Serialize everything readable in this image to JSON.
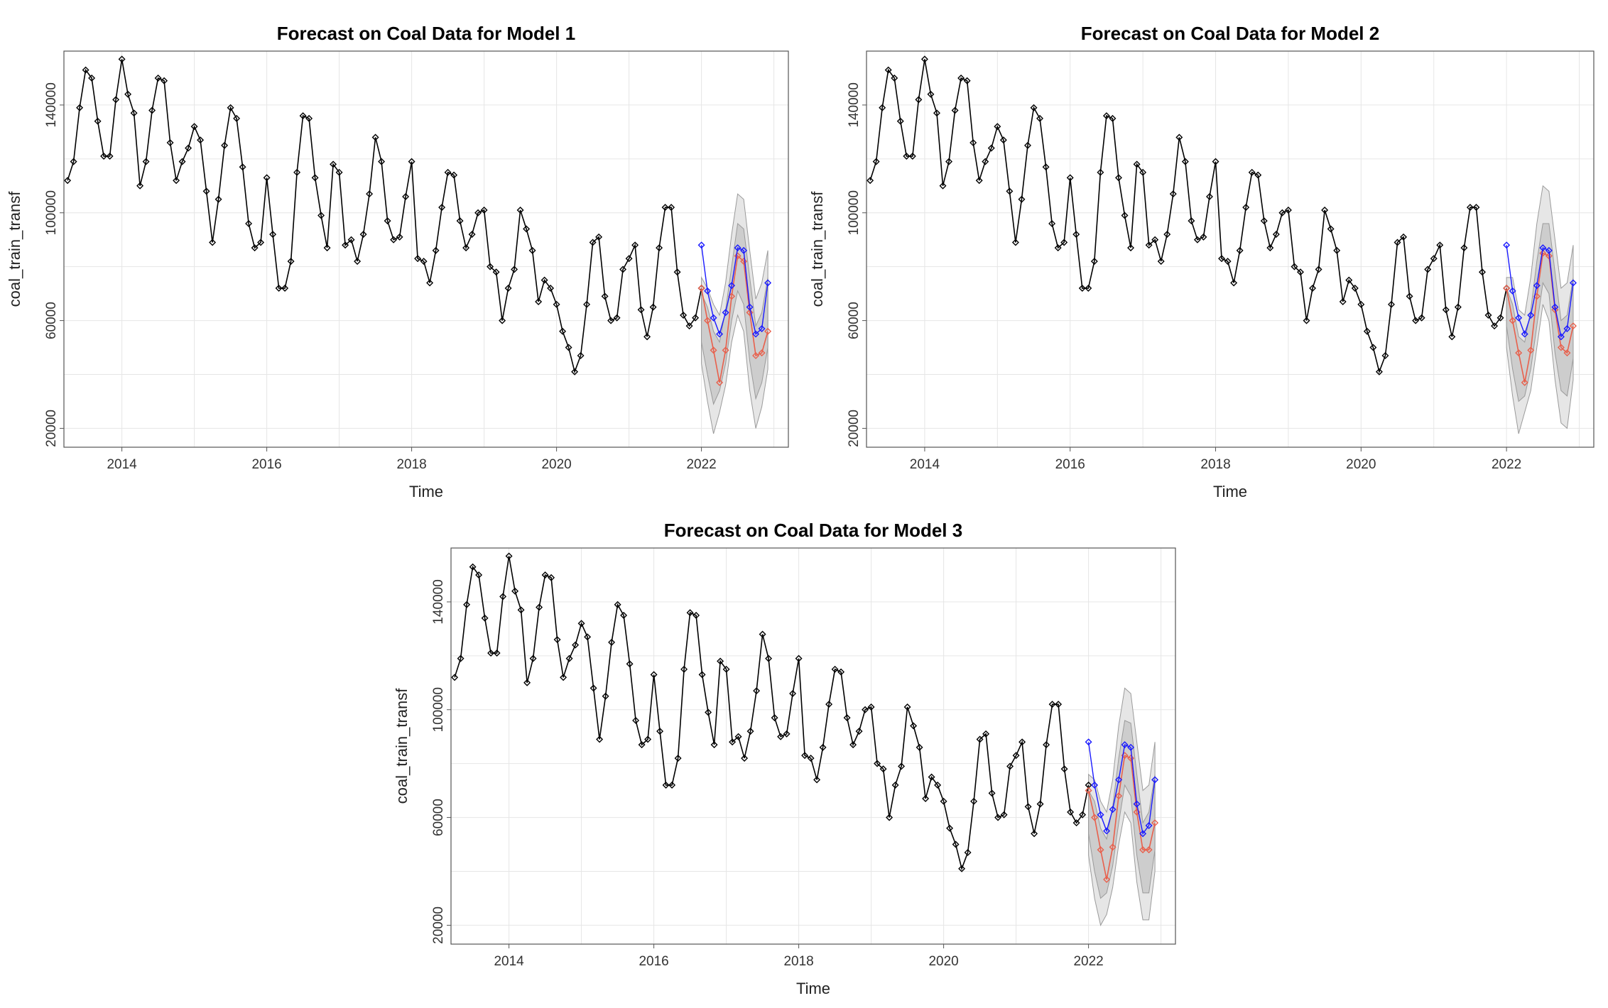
{
  "chart_data": [
    {
      "type": "line",
      "title": "Forecast on Coal Data for Model 1",
      "xlabel": "Time",
      "ylabel": "coal_train_transf",
      "xlim": [
        2013.2,
        2023.2
      ],
      "ylim": [
        13000,
        160000
      ],
      "x_ticks": [
        2014,
        2016,
        2018,
        2020,
        2022
      ],
      "y_ticks": [
        20000,
        60000,
        100000,
        140000
      ],
      "grid": true,
      "legend": "none",
      "observed": {
        "color": "#000000",
        "x_start": 2013.25,
        "x_step": 0.0833333,
        "values": [
          112000,
          119000,
          139000,
          153000,
          150000,
          134000,
          121000,
          121000,
          142000,
          157000,
          144000,
          137000,
          110000,
          119000,
          138000,
          150000,
          149000,
          126000,
          112000,
          119000,
          124000,
          132000,
          127000,
          108000,
          89000,
          105000,
          125000,
          139000,
          135000,
          117000,
          96000,
          87000,
          89000,
          113000,
          92000,
          72000,
          72000,
          82000,
          115000,
          136000,
          135000,
          113000,
          99000,
          87000,
          118000,
          115000,
          88000,
          90000,
          82000,
          92000,
          107000,
          128000,
          119000,
          97000,
          90000,
          91000,
          106000,
          119000,
          83000,
          82000,
          74000,
          86000,
          102000,
          115000,
          114000,
          97000,
          87000,
          92000,
          100000,
          101000,
          80000,
          78000,
          60000,
          72000,
          79000,
          101000,
          94000,
          86000,
          67000,
          75000,
          72000,
          66000,
          56000,
          50000,
          41000,
          47000,
          66000,
          89000,
          91000,
          69000,
          60000,
          61000,
          79000,
          83000,
          88000,
          64000,
          54000,
          65000,
          87000,
          102000,
          102000,
          78000,
          62000,
          58000,
          61000,
          72000
        ]
      },
      "forecast_blue": {
        "color": "#1a1aff",
        "x_start": 2022.0,
        "x_step": 0.0833333,
        "values": [
          88000,
          71000,
          61000,
          55000,
          63000,
          73000,
          87000,
          86000,
          65000,
          55000,
          57000,
          74000
        ]
      },
      "forecast_red": {
        "color": "#e8604c",
        "x_start": 2022.0,
        "x_step": 0.0833333,
        "values": [
          72000,
          60000,
          49000,
          37000,
          49000,
          69000,
          84000,
          82000,
          63000,
          47000,
          48000,
          56000
        ]
      },
      "band_95_lower": [
        44000,
        30000,
        18000,
        26000,
        36000,
        52000,
        62000,
        56000,
        34000,
        20000,
        28000,
        42000
      ],
      "band_95_upper": [
        76000,
        72000,
        66000,
        62000,
        74000,
        92000,
        107000,
        105000,
        86000,
        68000,
        74000,
        86000
      ],
      "band_80_lower": [
        52000,
        40000,
        29000,
        34000,
        44000,
        60000,
        71000,
        66000,
        45000,
        31000,
        37000,
        50000
      ],
      "band_80_upper": [
        70000,
        65000,
        56000,
        52000,
        64000,
        80000,
        96000,
        94000,
        76000,
        58000,
        63000,
        76000
      ]
    },
    {
      "type": "line",
      "title": "Forecast on Coal Data for Model 2",
      "xlabel": "Time",
      "ylabel": "coal_train_transf",
      "xlim": [
        2013.2,
        2023.2
      ],
      "ylim": [
        13000,
        160000
      ],
      "x_ticks": [
        2014,
        2016,
        2018,
        2020,
        2022
      ],
      "y_ticks": [
        20000,
        60000,
        100000,
        140000
      ],
      "grid": true,
      "legend": "none",
      "observed": {
        "color": "#000000",
        "x_start": 2013.25,
        "x_step": 0.0833333,
        "values": [
          112000,
          119000,
          139000,
          153000,
          150000,
          134000,
          121000,
          121000,
          142000,
          157000,
          144000,
          137000,
          110000,
          119000,
          138000,
          150000,
          149000,
          126000,
          112000,
          119000,
          124000,
          132000,
          127000,
          108000,
          89000,
          105000,
          125000,
          139000,
          135000,
          117000,
          96000,
          87000,
          89000,
          113000,
          92000,
          72000,
          72000,
          82000,
          115000,
          136000,
          135000,
          113000,
          99000,
          87000,
          118000,
          115000,
          88000,
          90000,
          82000,
          92000,
          107000,
          128000,
          119000,
          97000,
          90000,
          91000,
          106000,
          119000,
          83000,
          82000,
          74000,
          86000,
          102000,
          115000,
          114000,
          97000,
          87000,
          92000,
          100000,
          101000,
          80000,
          78000,
          60000,
          72000,
          79000,
          101000,
          94000,
          86000,
          67000,
          75000,
          72000,
          66000,
          56000,
          50000,
          41000,
          47000,
          66000,
          89000,
          91000,
          69000,
          60000,
          61000,
          79000,
          83000,
          88000,
          64000,
          54000,
          65000,
          87000,
          102000,
          102000,
          78000,
          62000,
          58000,
          61000,
          72000
        ]
      },
      "forecast_blue": {
        "color": "#1a1aff",
        "x_start": 2022.0,
        "x_step": 0.0833333,
        "values": [
          88000,
          71000,
          61000,
          55000,
          62000,
          73000,
          87000,
          86000,
          65000,
          54000,
          57000,
          74000
        ]
      },
      "forecast_red": {
        "color": "#e8604c",
        "x_start": 2022.0,
        "x_step": 0.0833333,
        "values": [
          72000,
          60000,
          48000,
          37000,
          49000,
          69000,
          85000,
          84000,
          64000,
          50000,
          48000,
          58000
        ]
      },
      "band_95_lower": [
        50000,
        32000,
        18000,
        26000,
        34000,
        50000,
        66000,
        60000,
        38000,
        22000,
        20000,
        38000
      ],
      "band_95_upper": [
        76000,
        76000,
        64000,
        62000,
        76000,
        96000,
        110000,
        108000,
        90000,
        72000,
        74000,
        88000
      ],
      "band_80_lower": [
        58000,
        42000,
        30000,
        32000,
        42000,
        58000,
        74000,
        70000,
        48000,
        34000,
        32000,
        46000
      ],
      "band_80_upper": [
        72000,
        66000,
        54000,
        52000,
        64000,
        82000,
        96000,
        96000,
        78000,
        60000,
        62000,
        76000
      ]
    },
    {
      "type": "line",
      "title": "Forecast on Coal Data for Model 3",
      "xlabel": "Time",
      "ylabel": "coal_train_transf",
      "xlim": [
        2013.2,
        2023.2
      ],
      "ylim": [
        13000,
        160000
      ],
      "x_ticks": [
        2014,
        2016,
        2018,
        2020,
        2022
      ],
      "y_ticks": [
        20000,
        60000,
        100000,
        140000
      ],
      "grid": true,
      "legend": "none",
      "observed": {
        "color": "#000000",
        "x_start": 2013.25,
        "x_step": 0.0833333,
        "values": [
          112000,
          119000,
          139000,
          153000,
          150000,
          134000,
          121000,
          121000,
          142000,
          157000,
          144000,
          137000,
          110000,
          119000,
          138000,
          150000,
          149000,
          126000,
          112000,
          119000,
          124000,
          132000,
          127000,
          108000,
          89000,
          105000,
          125000,
          139000,
          135000,
          117000,
          96000,
          87000,
          89000,
          113000,
          92000,
          72000,
          72000,
          82000,
          115000,
          136000,
          135000,
          113000,
          99000,
          87000,
          118000,
          115000,
          88000,
          90000,
          82000,
          92000,
          107000,
          128000,
          119000,
          97000,
          90000,
          91000,
          106000,
          119000,
          83000,
          82000,
          74000,
          86000,
          102000,
          115000,
          114000,
          97000,
          87000,
          92000,
          100000,
          101000,
          80000,
          78000,
          60000,
          72000,
          79000,
          101000,
          94000,
          86000,
          67000,
          75000,
          72000,
          66000,
          56000,
          50000,
          41000,
          47000,
          66000,
          89000,
          91000,
          69000,
          60000,
          61000,
          79000,
          83000,
          88000,
          64000,
          54000,
          65000,
          87000,
          102000,
          102000,
          78000,
          62000,
          58000,
          61000,
          72000
        ]
      },
      "forecast_blue": {
        "color": "#1a1aff",
        "x_start": 2022.0,
        "x_step": 0.0833333,
        "values": [
          88000,
          72000,
          61000,
          55000,
          63000,
          74000,
          87000,
          86000,
          65000,
          54000,
          57000,
          74000
        ]
      },
      "forecast_red": {
        "color": "#e8604c",
        "x_start": 2022.0,
        "x_step": 0.0833333,
        "values": [
          70000,
          60000,
          48000,
          37000,
          49000,
          68000,
          83000,
          82000,
          62000,
          48000,
          48000,
          58000
        ]
      },
      "band_95_lower": [
        46000,
        30000,
        20000,
        24000,
        34000,
        50000,
        62000,
        58000,
        36000,
        22000,
        22000,
        40000
      ],
      "band_95_upper": [
        76000,
        74000,
        66000,
        62000,
        74000,
        94000,
        108000,
        106000,
        88000,
        70000,
        72000,
        88000
      ],
      "band_80_lower": [
        54000,
        40000,
        30000,
        32000,
        42000,
        58000,
        72000,
        68000,
        46000,
        32000,
        32000,
        48000
      ],
      "band_80_upper": [
        70000,
        66000,
        56000,
        52000,
        64000,
        82000,
        96000,
        95000,
        76000,
        58000,
        62000,
        76000
      ]
    }
  ]
}
